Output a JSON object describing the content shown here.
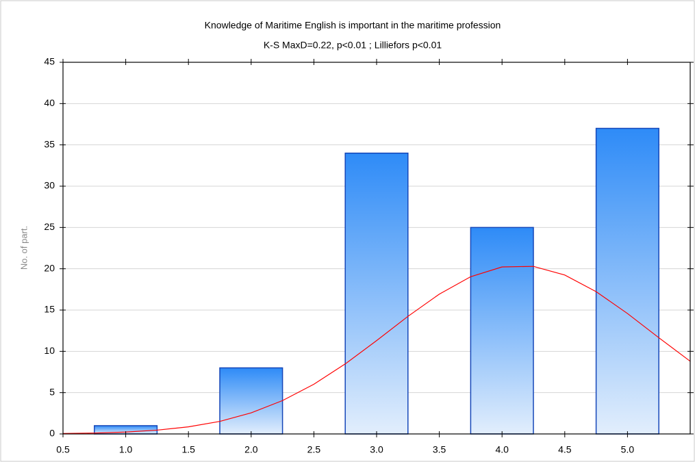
{
  "chart_data": {
    "type": "histogram",
    "title": "Knowledge of Maritime English is important in the maritime profession",
    "subtitle": "K-S MaxD=0.22, p<0.01 ; Lilliefors p<0.01",
    "y_label": "No. of part.",
    "bins": [
      0.75,
      1.25,
      1.75,
      2.25,
      2.75,
      3.25,
      3.75,
      4.25,
      4.75,
      5.25
    ],
    "values": [
      1,
      0,
      8,
      0,
      34,
      0,
      25,
      0,
      37
    ],
    "color": "#3b8ff5",
    "curve": {
      "color": "#ff0000",
      "x": [
        0.5,
        0.75,
        1.0,
        1.25,
        1.5,
        1.75,
        2.0,
        2.25,
        2.5,
        2.75,
        3.0,
        3.25,
        3.5,
        3.75,
        4.0,
        4.25,
        4.5,
        4.75,
        5.0,
        5.25,
        5.5
      ],
      "values": [
        0.05,
        0.11,
        0.23,
        0.46,
        0.86,
        1.52,
        2.55,
        4.04,
        6.02,
        8.48,
        11.3,
        14.24,
        16.93,
        19.04,
        20.22,
        20.29,
        19.24,
        17.23,
        14.58,
        11.65,
        8.8
      ]
    },
    "xlim": [
      0.5,
      5.5
    ],
    "xticks": [
      0.5,
      {
        "value": 1,
        "label": "1.0"
      },
      1.5,
      {
        "value": 2,
        "label": "2.0"
      },
      2.5,
      {
        "value": 3,
        "label": "3.0"
      },
      3.5,
      {
        "value": 4,
        "label": "4.0"
      },
      4.5,
      {
        "value": 5,
        "label": "5.0"
      }
    ],
    "ylim": [
      0,
      45
    ],
    "yticks": [
      0,
      5,
      10,
      15,
      20,
      25,
      30,
      35,
      40,
      45
    ],
    "grid": true
  }
}
